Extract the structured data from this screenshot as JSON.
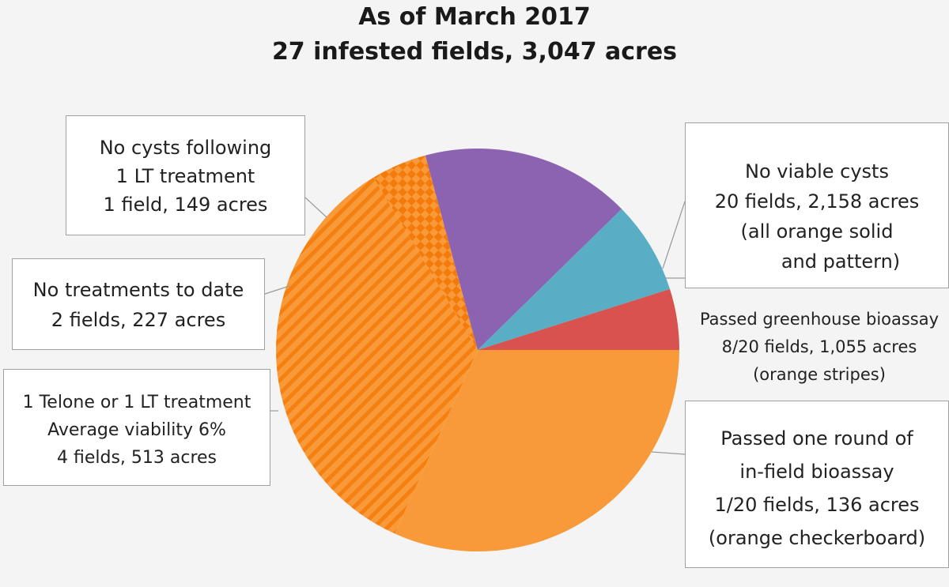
{
  "chart_data": {
    "type": "pie",
    "title": [
      "As of March 2017",
      "27 infested fields, 3,047 acres"
    ],
    "slices": [
      {
        "key": "no_viable_orange_solid",
        "value": 967,
        "color": "#f89a3a",
        "pattern": "solid"
      },
      {
        "key": "passed_greenhouse",
        "value": 1055,
        "color": "#f89a3a",
        "pattern": "stripes"
      },
      {
        "key": "passed_infield",
        "value": 136,
        "color": "#f89a3a",
        "pattern": "checkerboard"
      },
      {
        "key": "telone_or_lt",
        "value": 513,
        "color": "#8c63b1",
        "pattern": "solid"
      },
      {
        "key": "no_treatments",
        "value": 227,
        "color": "#59adc4",
        "pattern": "solid"
      },
      {
        "key": "no_cysts_following",
        "value": 149,
        "color": "#d8534f",
        "pattern": "solid"
      }
    ],
    "labels": {
      "no_cysts_following": [
        "No cysts following",
        "1 LT treatment",
        "1 field, 149 acres"
      ],
      "no_treatments": [
        "No treatments to date",
        "2 fields, 227 acres"
      ],
      "telone_or_lt": [
        "1 Telone or 1 LT treatment",
        "Average viability 6%",
        "4 fields, 513 acres"
      ],
      "no_viable": [
        "No viable cysts",
        "20 fields, 2,158 acres",
        "(all orange solid",
        "and pattern)"
      ],
      "passed_greenhouse": [
        "Passed greenhouse bioassay",
        "8/20 fields, 1,055 acres",
        "(orange stripes)"
      ],
      "passed_infield": [
        "Passed one round of",
        "in-field bioassay",
        "1/20 fields, 136 acres",
        "(orange checkerboard)"
      ]
    }
  }
}
